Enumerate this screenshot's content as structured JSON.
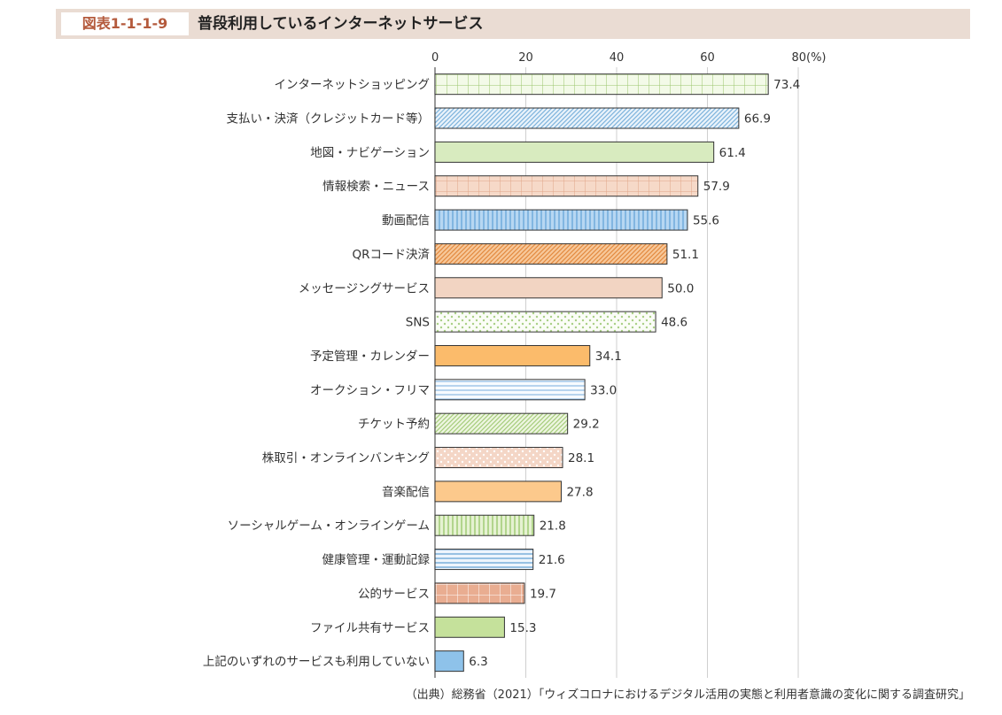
{
  "figure": {
    "label": "図表1-1-1-9",
    "title": "普段利用しているインターネットサービス",
    "source": "（出典）総務省（2021）「ウィズコロナにおけるデジタル活用の実態と利用者意識の変化に関する調査研究」"
  },
  "chart_data": {
    "type": "bar",
    "orientation": "horizontal",
    "title": "普段利用しているインターネットサービス",
    "xlabel": "",
    "ylabel": "",
    "xlim": [
      0,
      80
    ],
    "x_ticks": [
      "0",
      "20",
      "40",
      "60",
      "80(%)"
    ],
    "grid": true,
    "categories": [
      "インターネットショッピング",
      "支払い・決済（クレジットカード等）",
      "地図・ナビゲーション",
      "情報検索・ニュース",
      "動画配信",
      "QRコード決済",
      "メッセージングサービス",
      "SNS",
      "予定管理・カレンダー",
      "オークション・フリマ",
      "チケット予約",
      "株取引・オンラインバンキング",
      "音楽配信",
      "ソーシャルゲーム・オンラインゲーム",
      "健康管理・運動記録",
      "公的サービス",
      "ファイル共有サービス",
      "上記のいずれのサービスも利用していない"
    ],
    "values": [
      73.4,
      66.9,
      61.4,
      57.9,
      55.6,
      51.1,
      50.0,
      48.6,
      34.1,
      33.0,
      29.2,
      28.1,
      27.8,
      21.8,
      21.6,
      19.7,
      15.3,
      6.3
    ],
    "value_labels": [
      "73.4",
      "66.9",
      "61.4",
      "57.9",
      "55.6",
      "51.1",
      "50.0",
      "48.6",
      "34.1",
      "33.0",
      "29.2",
      "28.1",
      "27.8",
      "21.8",
      "21.6",
      "19.7",
      "15.3",
      "6.3"
    ],
    "styles": [
      {
        "fill": "#f3fae8",
        "pattern": "grid",
        "pattern_color": "#9ac46a"
      },
      {
        "fill": "#eaf3fb",
        "pattern": "diagonal",
        "pattern_color": "#7db3dc"
      },
      {
        "fill": "#d8ebbf",
        "pattern": "none",
        "pattern_color": ""
      },
      {
        "fill": "#f6d9c8",
        "pattern": "grid",
        "pattern_color": "#e0a587"
      },
      {
        "fill": "#b7d7f2",
        "pattern": "vertical",
        "pattern_color": "#5f9fd6"
      },
      {
        "fill": "#f7c89a",
        "pattern": "diagonal",
        "pattern_color": "#e38a3f"
      },
      {
        "fill": "#f2d4c2",
        "pattern": "none",
        "pattern_color": ""
      },
      {
        "fill": "#fbfdf7",
        "pattern": "dots",
        "pattern_color": "#a9cf85"
      },
      {
        "fill": "#fbbb6b",
        "pattern": "none",
        "pattern_color": ""
      },
      {
        "fill": "#f7fbff",
        "pattern": "horizontal",
        "pattern_color": "#8dbbe4"
      },
      {
        "fill": "#eef6e1",
        "pattern": "diagonal",
        "pattern_color": "#a6cc7b"
      },
      {
        "fill": "#f4d6c6",
        "pattern": "dots",
        "pattern_color": "#ffffff"
      },
      {
        "fill": "#fcc98c",
        "pattern": "none",
        "pattern_color": ""
      },
      {
        "fill": "#e6f2d2",
        "pattern": "vertical",
        "pattern_color": "#8fc25f"
      },
      {
        "fill": "#eef5fc",
        "pattern": "horizontal",
        "pattern_color": "#5d9fd3"
      },
      {
        "fill": "#e9ad91",
        "pattern": "grid",
        "pattern_color": "#ffffff"
      },
      {
        "fill": "#c5e19b",
        "pattern": "none",
        "pattern_color": ""
      },
      {
        "fill": "#8ec2ea",
        "pattern": "none",
        "pattern_color": ""
      }
    ]
  }
}
